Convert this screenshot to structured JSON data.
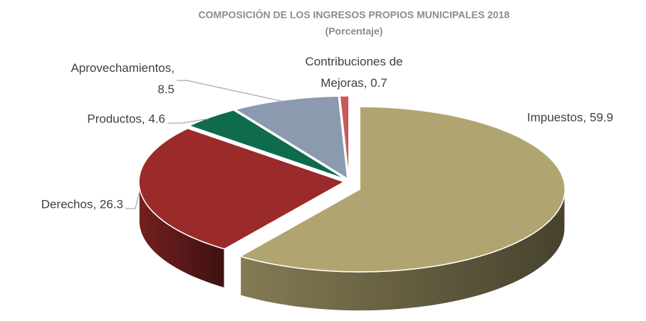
{
  "chart_data": {
    "type": "pie3d",
    "title": "COMPOSICIÓN DE LOS INGRESOS PROPIOS MUNICIPALES 2018",
    "subtitle": "(Porcentaje)",
    "categories": [
      "Impuestos",
      "Derechos",
      "Productos",
      "Aprovechamientos",
      "Contribuciones de Mejoras"
    ],
    "values": [
      59.9,
      26.3,
      4.6,
      8.5,
      0.7
    ],
    "value_labels": [
      "Impuestos, 59.9",
      "Derechos, 26.3",
      "Productos, 4.6",
      "Aprovechamientos, 8.5",
      "Contribuciones de Mejoras, 0.7"
    ],
    "colors": [
      "#b0a470",
      "#9b2a2a",
      "#0e6b4c",
      "#8c9ab0",
      "#c85a5a"
    ]
  }
}
